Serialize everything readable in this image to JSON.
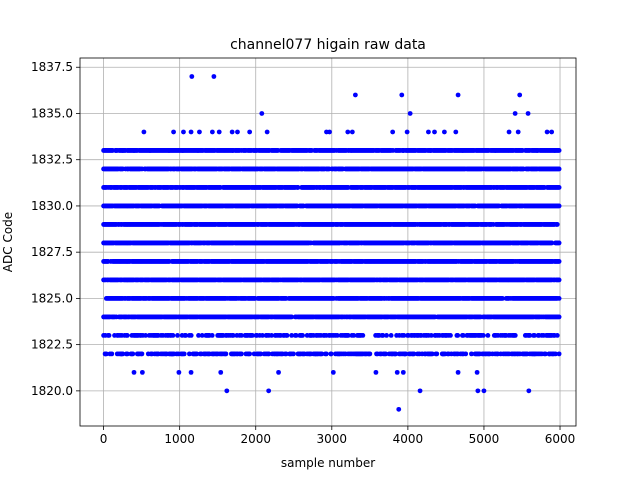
{
  "chart_data": {
    "type": "scatter",
    "title": "channel077 higain raw data",
    "xlabel": "sample number",
    "ylabel": "ADC Code",
    "xlim": [
      -310,
      6210
    ],
    "ylim": [
      1818.1,
      1838.0
    ],
    "x_ticks": [
      0,
      1000,
      2000,
      3000,
      4000,
      5000,
      6000
    ],
    "y_ticks": [
      1820.0,
      1822.5,
      1825.0,
      1827.5,
      1830.0,
      1832.5,
      1835.0,
      1837.5
    ],
    "grid": true,
    "legend": "none",
    "n_samples": 6000,
    "marker": "circle",
    "color": "#0000ff",
    "dense_levels": [
      1824,
      1825,
      1826,
      1827,
      1828,
      1829,
      1830,
      1831,
      1832,
      1833
    ],
    "sparse_levels": [
      1822,
      1823
    ],
    "outliers": [
      {
        "x": 20,
        "y": 1822
      },
      {
        "x": 180,
        "y": 1822
      },
      {
        "x": 230,
        "y": 1822
      },
      {
        "x": 300,
        "y": 1822
      },
      {
        "x": 360,
        "y": 1822
      },
      {
        "x": 820,
        "y": 1822
      },
      {
        "x": 900,
        "y": 1822
      },
      {
        "x": 960,
        "y": 1822
      },
      {
        "x": 1060,
        "y": 1822
      },
      {
        "x": 1330,
        "y": 1822
      },
      {
        "x": 1530,
        "y": 1822
      },
      {
        "x": 1600,
        "y": 1822
      },
      {
        "x": 1760,
        "y": 1822
      },
      {
        "x": 1980,
        "y": 1822
      },
      {
        "x": 2060,
        "y": 1822
      },
      {
        "x": 2280,
        "y": 1822
      },
      {
        "x": 2450,
        "y": 1822
      },
      {
        "x": 2590,
        "y": 1822
      },
      {
        "x": 2780,
        "y": 1822
      },
      {
        "x": 2990,
        "y": 1822
      },
      {
        "x": 3130,
        "y": 1822
      },
      {
        "x": 3290,
        "y": 1822
      },
      {
        "x": 3500,
        "y": 1822
      },
      {
        "x": 3680,
        "y": 1822
      },
      {
        "x": 3830,
        "y": 1822
      },
      {
        "x": 3960,
        "y": 1822
      },
      {
        "x": 4230,
        "y": 1822
      },
      {
        "x": 4460,
        "y": 1822
      },
      {
        "x": 4760,
        "y": 1822
      },
      {
        "x": 5050,
        "y": 1822
      },
      {
        "x": 5180,
        "y": 1822
      },
      {
        "x": 5380,
        "y": 1822
      },
      {
        "x": 5520,
        "y": 1822
      },
      {
        "x": 5670,
        "y": 1822
      },
      {
        "x": 5860,
        "y": 1822
      },
      {
        "x": 400,
        "y": 1821
      },
      {
        "x": 510,
        "y": 1821
      },
      {
        "x": 990,
        "y": 1821
      },
      {
        "x": 1150,
        "y": 1821
      },
      {
        "x": 1540,
        "y": 1821
      },
      {
        "x": 2300,
        "y": 1821
      },
      {
        "x": 3020,
        "y": 1821
      },
      {
        "x": 3580,
        "y": 1821
      },
      {
        "x": 3860,
        "y": 1821
      },
      {
        "x": 3940,
        "y": 1821
      },
      {
        "x": 4660,
        "y": 1821
      },
      {
        "x": 4910,
        "y": 1821
      },
      {
        "x": 1620,
        "y": 1820
      },
      {
        "x": 2170,
        "y": 1820
      },
      {
        "x": 4160,
        "y": 1820
      },
      {
        "x": 4920,
        "y": 1820
      },
      {
        "x": 5000,
        "y": 1820
      },
      {
        "x": 5590,
        "y": 1820
      },
      {
        "x": 3880,
        "y": 1819
      },
      {
        "x": 160,
        "y": 1833
      },
      {
        "x": 250,
        "y": 1833
      },
      {
        "x": 400,
        "y": 1833
      },
      {
        "x": 610,
        "y": 1833
      },
      {
        "x": 860,
        "y": 1833
      },
      {
        "x": 1040,
        "y": 1833
      },
      {
        "x": 1240,
        "y": 1833
      },
      {
        "x": 1700,
        "y": 1833
      },
      {
        "x": 2180,
        "y": 1833
      },
      {
        "x": 2700,
        "y": 1833
      },
      {
        "x": 3250,
        "y": 1833
      },
      {
        "x": 3940,
        "y": 1833
      },
      {
        "x": 4300,
        "y": 1833
      },
      {
        "x": 4720,
        "y": 1833
      },
      {
        "x": 5150,
        "y": 1833
      },
      {
        "x": 5700,
        "y": 1833
      },
      {
        "x": 5930,
        "y": 1833
      },
      {
        "x": 530,
        "y": 1834
      },
      {
        "x": 920,
        "y": 1834
      },
      {
        "x": 1050,
        "y": 1834
      },
      {
        "x": 1150,
        "y": 1834
      },
      {
        "x": 1260,
        "y": 1834
      },
      {
        "x": 1430,
        "y": 1834
      },
      {
        "x": 1520,
        "y": 1834
      },
      {
        "x": 1690,
        "y": 1834
      },
      {
        "x": 1760,
        "y": 1834
      },
      {
        "x": 1920,
        "y": 1834
      },
      {
        "x": 2150,
        "y": 1834
      },
      {
        "x": 2930,
        "y": 1834
      },
      {
        "x": 2970,
        "y": 1834
      },
      {
        "x": 3210,
        "y": 1834
      },
      {
        "x": 3270,
        "y": 1834
      },
      {
        "x": 3800,
        "y": 1834
      },
      {
        "x": 3990,
        "y": 1834
      },
      {
        "x": 4270,
        "y": 1834
      },
      {
        "x": 4350,
        "y": 1834
      },
      {
        "x": 4480,
        "y": 1834
      },
      {
        "x": 4630,
        "y": 1834
      },
      {
        "x": 5330,
        "y": 1834
      },
      {
        "x": 5450,
        "y": 1834
      },
      {
        "x": 5830,
        "y": 1834
      },
      {
        "x": 5890,
        "y": 1834
      },
      {
        "x": 2080,
        "y": 1835
      },
      {
        "x": 4030,
        "y": 1835
      },
      {
        "x": 5410,
        "y": 1835
      },
      {
        "x": 5580,
        "y": 1835
      },
      {
        "x": 3310,
        "y": 1836
      },
      {
        "x": 3920,
        "y": 1836
      },
      {
        "x": 4660,
        "y": 1836
      },
      {
        "x": 5470,
        "y": 1836
      },
      {
        "x": 1160,
        "y": 1837
      },
      {
        "x": 1450,
        "y": 1837
      }
    ]
  }
}
